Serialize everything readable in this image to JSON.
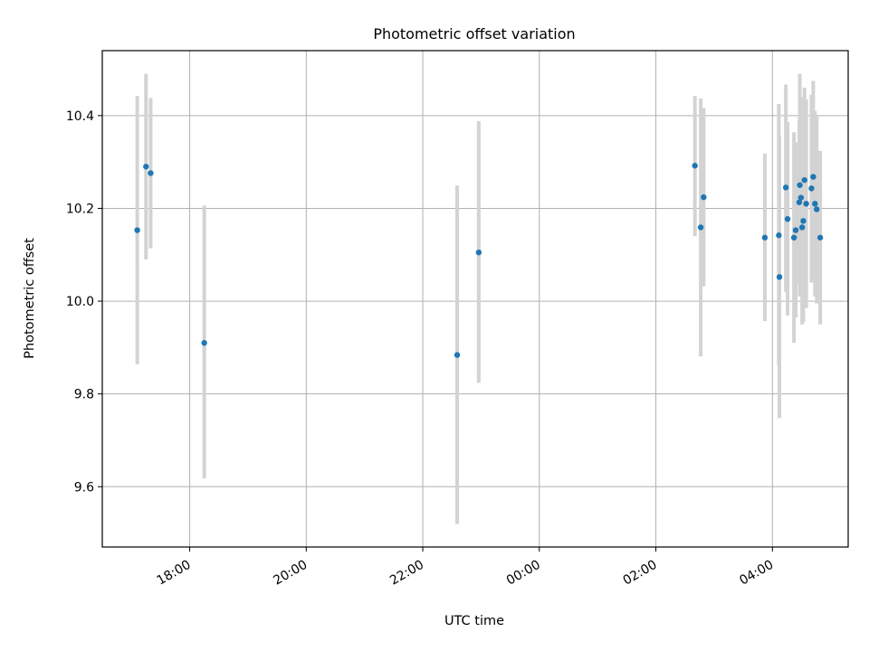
{
  "chart_data": {
    "type": "scatter",
    "title": "Photometric offset variation",
    "xlabel": "UTC time",
    "ylabel": "Photometric offset",
    "x_unit": "hours (UTC clock; values beyond 24 are after midnight)",
    "xlim": [
      16.5,
      29.3
    ],
    "ylim": [
      9.47,
      10.54
    ],
    "xticks": [
      {
        "value": 18,
        "label": "18:00"
      },
      {
        "value": 20,
        "label": "20:00"
      },
      {
        "value": 22,
        "label": "22:00"
      },
      {
        "value": 24,
        "label": "00:00"
      },
      {
        "value": 26,
        "label": "02:00"
      },
      {
        "value": 28,
        "label": "04:00"
      }
    ],
    "yticks": [
      {
        "value": 9.6,
        "label": "9.6"
      },
      {
        "value": 9.8,
        "label": "9.8"
      },
      {
        "value": 10.0,
        "label": "10.0"
      },
      {
        "value": 10.2,
        "label": "10.2"
      },
      {
        "value": 10.4,
        "label": "10.4"
      }
    ],
    "grid": true,
    "point_color": "#1f77b4",
    "errorbar_color": "#d3d3d3",
    "points": [
      {
        "x": 17.1,
        "y": 10.153,
        "lo": 9.864,
        "hi": 10.442
      },
      {
        "x": 17.25,
        "y": 10.29,
        "lo": 10.09,
        "hi": 10.49
      },
      {
        "x": 17.33,
        "y": 10.276,
        "lo": 10.114,
        "hi": 10.438
      },
      {
        "x": 18.25,
        "y": 9.91,
        "lo": 9.618,
        "hi": 10.206
      },
      {
        "x": 22.59,
        "y": 9.884,
        "lo": 9.52,
        "hi": 10.249
      },
      {
        "x": 22.96,
        "y": 10.105,
        "lo": 9.824,
        "hi": 10.388
      },
      {
        "x": 26.67,
        "y": 10.292,
        "lo": 10.14,
        "hi": 10.442
      },
      {
        "x": 26.77,
        "y": 10.159,
        "lo": 9.881,
        "hi": 10.437
      },
      {
        "x": 26.82,
        "y": 10.224,
        "lo": 10.032,
        "hi": 10.416
      },
      {
        "x": 27.87,
        "y": 10.137,
        "lo": 9.957,
        "hi": 10.318
      },
      {
        "x": 28.11,
        "y": 10.142,
        "lo": 9.862,
        "hi": 10.425
      },
      {
        "x": 28.12,
        "y": 10.052,
        "lo": 9.748,
        "hi": 10.355
      },
      {
        "x": 28.23,
        "y": 10.245,
        "lo": 10.02,
        "hi": 10.467
      },
      {
        "x": 28.26,
        "y": 10.177,
        "lo": 9.969,
        "hi": 10.386
      },
      {
        "x": 28.37,
        "y": 10.137,
        "lo": 9.91,
        "hi": 10.364
      },
      {
        "x": 28.4,
        "y": 10.153,
        "lo": 9.965,
        "hi": 10.342
      },
      {
        "x": 28.46,
        "y": 10.213,
        "lo": 10.04,
        "hi": 10.389
      },
      {
        "x": 28.47,
        "y": 10.25,
        "lo": 10.01,
        "hi": 10.49
      },
      {
        "x": 28.49,
        "y": 10.223,
        "lo": 10.01,
        "hi": 10.44
      },
      {
        "x": 28.51,
        "y": 10.159,
        "lo": 9.95,
        "hi": 10.37
      },
      {
        "x": 28.53,
        "y": 10.173,
        "lo": 9.955,
        "hi": 10.391
      },
      {
        "x": 28.55,
        "y": 10.261,
        "lo": 10.06,
        "hi": 10.46
      },
      {
        "x": 28.58,
        "y": 10.21,
        "lo": 9.985,
        "hi": 10.435
      },
      {
        "x": 28.67,
        "y": 10.243,
        "lo": 10.04,
        "hi": 10.445
      },
      {
        "x": 28.7,
        "y": 10.268,
        "lo": 10.06,
        "hi": 10.475
      },
      {
        "x": 28.73,
        "y": 10.21,
        "lo": 10.01,
        "hi": 10.41
      },
      {
        "x": 28.76,
        "y": 10.198,
        "lo": 9.995,
        "hi": 10.4
      },
      {
        "x": 28.82,
        "y": 10.137,
        "lo": 9.95,
        "hi": 10.324
      }
    ]
  }
}
